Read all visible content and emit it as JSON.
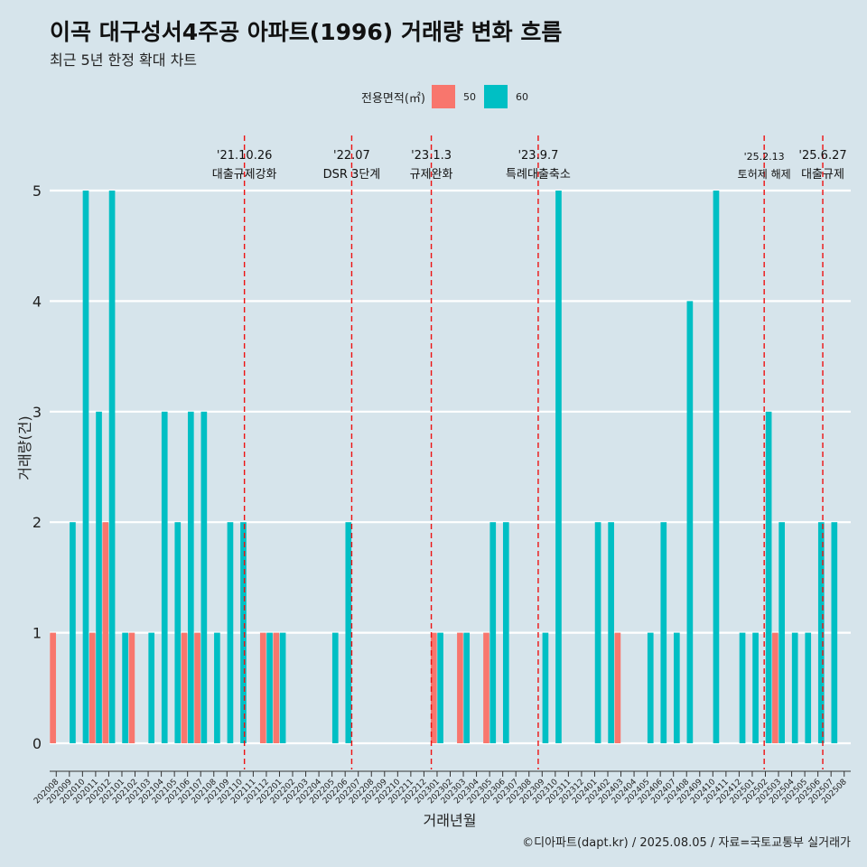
{
  "title": "이곡 대구성서4주공 아파트(1996) 거래량 변화 흐름",
  "subtitle": "최근 5년 한정 확대 차트",
  "credit": "©디아파트(dapt.kr) / 2025.08.05 / 자료=국토교통부 실거래가",
  "legend": {
    "title": "전용면적(㎡)",
    "items": [
      {
        "label": "50",
        "color": "#f8766d"
      },
      {
        "label": "60",
        "color": "#00bfc4"
      }
    ]
  },
  "chart_data": {
    "type": "bar",
    "xlabel": "거래년월",
    "ylabel": "거래량(건)",
    "ylim": [
      0,
      5
    ],
    "yticks": [
      0,
      1,
      2,
      3,
      4,
      5
    ],
    "grid": true,
    "legend_position": "top",
    "categories": [
      "202008",
      "202009",
      "202010",
      "202011",
      "202012",
      "202101",
      "202102",
      "202103",
      "202104",
      "202105",
      "202106",
      "202107",
      "202108",
      "202109",
      "202110",
      "202111",
      "202112",
      "202201",
      "202202",
      "202203",
      "202204",
      "202205",
      "202206",
      "202207",
      "202208",
      "202209",
      "202210",
      "202211",
      "202212",
      "202301",
      "202302",
      "202303",
      "202304",
      "202305",
      "202306",
      "202307",
      "202308",
      "202309",
      "202310",
      "202311",
      "202312",
      "202401",
      "202402",
      "202403",
      "202404",
      "202405",
      "202406",
      "202407",
      "202408",
      "202409",
      "202410",
      "202411",
      "202412",
      "202501",
      "202502",
      "202503",
      "202504",
      "202505",
      "202506",
      "202507",
      "202508"
    ],
    "series": [
      {
        "name": "50",
        "color": "#f8766d",
        "values": [
          1,
          0,
          0,
          1,
          2,
          0,
          1,
          0,
          0,
          0,
          1,
          1,
          0,
          0,
          0,
          0,
          1,
          1,
          0,
          0,
          0,
          0,
          0,
          0,
          0,
          0,
          0,
          0,
          0,
          1,
          0,
          1,
          0,
          1,
          0,
          0,
          0,
          0,
          0,
          0,
          0,
          0,
          0,
          1,
          0,
          0,
          0,
          0,
          0,
          0,
          0,
          0,
          0,
          0,
          0,
          1,
          0,
          0,
          0,
          0,
          0
        ]
      },
      {
        "name": "60",
        "color": "#00bfc4",
        "values": [
          0,
          2,
          5,
          3,
          5,
          1,
          0,
          1,
          3,
          2,
          3,
          3,
          1,
          2,
          2,
          0,
          1,
          1,
          0,
          0,
          0,
          1,
          2,
          0,
          0,
          0,
          0,
          0,
          0,
          1,
          0,
          1,
          0,
          2,
          2,
          0,
          0,
          1,
          5,
          0,
          0,
          2,
          2,
          0,
          0,
          1,
          2,
          1,
          4,
          0,
          5,
          0,
          1,
          1,
          3,
          2,
          1,
          1,
          2,
          2,
          0
        ]
      }
    ],
    "annotations": [
      {
        "date": "'21.10.26",
        "text": "대출규제강화",
        "month": "202110",
        "offset": 0.83
      },
      {
        "date": "'22.07",
        "text": "DSR 3단계",
        "month": "202207",
        "offset": 0.0
      },
      {
        "date": "'23.1.3",
        "text": "규제완화",
        "month": "202301",
        "offset": 0.06
      },
      {
        "date": "'23.9.7",
        "text": "특례대출축소",
        "month": "202309",
        "offset": 0.2
      },
      {
        "date": "'25.2.13",
        "text": "토허제 해제",
        "month": "202502",
        "offset": 0.41
      },
      {
        "date": "'25.6.27",
        "text": "대출규제",
        "month": "202506",
        "offset": 0.87
      }
    ]
  }
}
